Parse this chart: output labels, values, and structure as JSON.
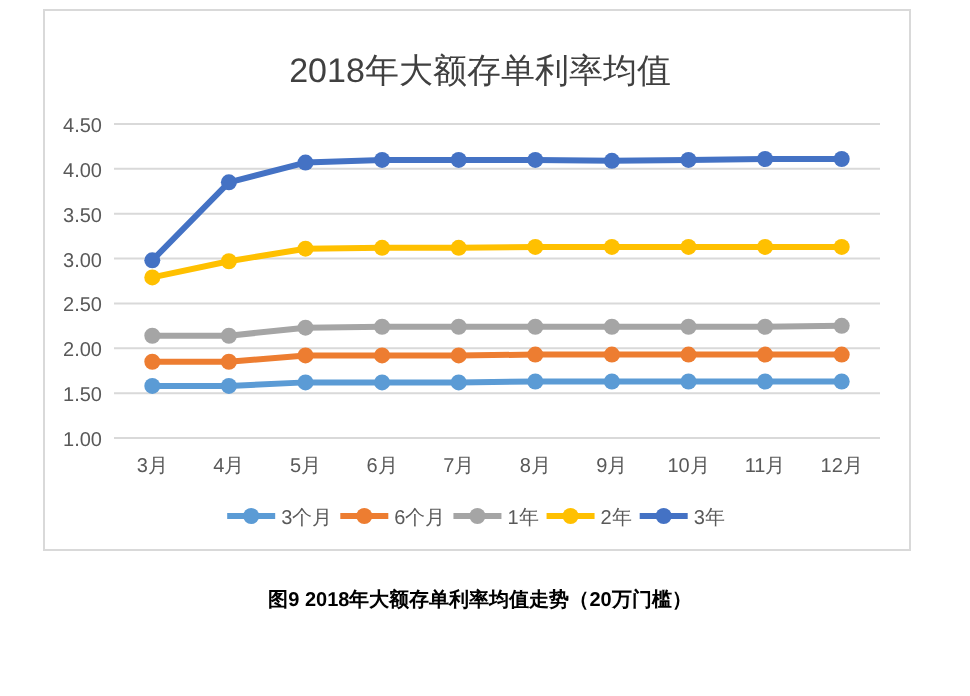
{
  "chart_data": {
    "type": "line",
    "title": "2018年大额存单利率均值",
    "categories": [
      "3月",
      "4月",
      "5月",
      "6月",
      "7月",
      "8月",
      "9月",
      "10月",
      "11月",
      "12月"
    ],
    "series": [
      {
        "name": "3个月",
        "color": "#5b9bd5",
        "values": [
          1.58,
          1.58,
          1.62,
          1.62,
          1.62,
          1.63,
          1.63,
          1.63,
          1.63,
          1.63
        ]
      },
      {
        "name": "6个月",
        "color": "#ed7d31",
        "values": [
          1.85,
          1.85,
          1.92,
          1.92,
          1.92,
          1.93,
          1.93,
          1.93,
          1.93,
          1.93
        ]
      },
      {
        "name": "1年",
        "color": "#a5a5a5",
        "values": [
          2.14,
          2.14,
          2.23,
          2.24,
          2.24,
          2.24,
          2.24,
          2.24,
          2.24,
          2.25
        ]
      },
      {
        "name": "2年",
        "color": "#ffc000",
        "values": [
          2.79,
          2.97,
          3.11,
          3.12,
          3.12,
          3.13,
          3.13,
          3.13,
          3.13,
          3.13
        ]
      },
      {
        "name": "3年",
        "color": "#4472c4",
        "values": [
          2.98,
          3.85,
          4.07,
          4.1,
          4.1,
          4.1,
          4.09,
          4.1,
          4.11,
          4.11
        ]
      }
    ],
    "ylim": [
      1.0,
      4.5
    ],
    "yticks": [
      {
        "value": 1.0,
        "label": "1.00"
      },
      {
        "value": 1.5,
        "label": "1.50"
      },
      {
        "value": 2.0,
        "label": "2.00"
      },
      {
        "value": 2.5,
        "label": "2.50"
      },
      {
        "value": 3.0,
        "label": "3.00"
      },
      {
        "value": 3.5,
        "label": "3.50"
      },
      {
        "value": 4.0,
        "label": "4.00"
      },
      {
        "value": 4.5,
        "label": "4.50"
      }
    ],
    "grid": "y",
    "legend": "bottom",
    "marker": "circle",
    "line_style": "solid",
    "annotations": [
      "图9  2018年大额存单利率均值走势（20万门槛）"
    ]
  }
}
